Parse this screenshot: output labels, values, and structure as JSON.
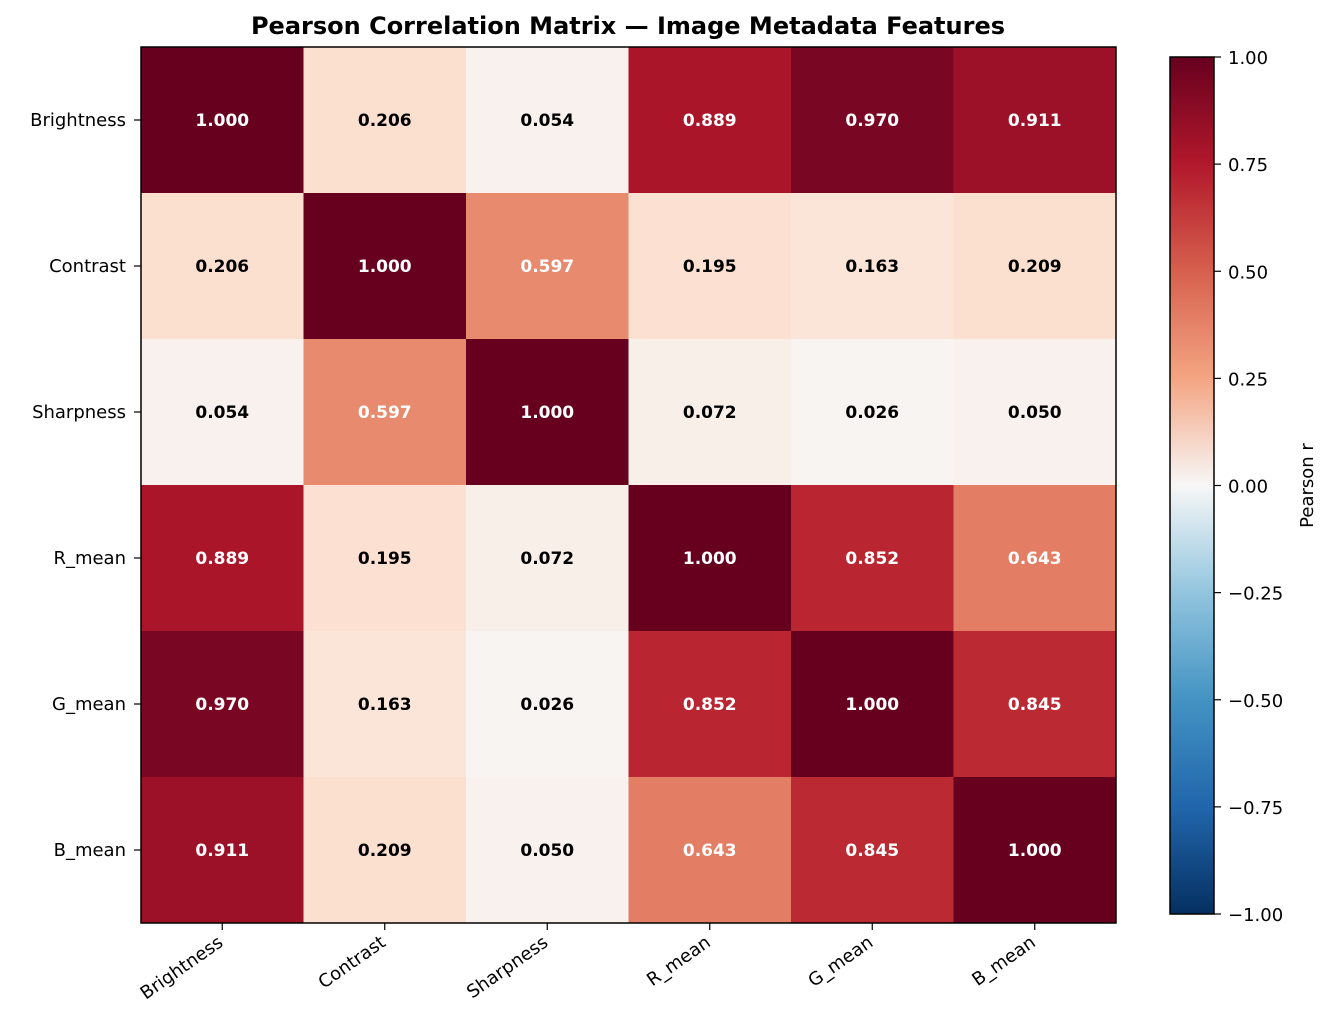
{
  "chart_data": {
    "type": "heatmap",
    "title": "Pearson Correlation Matrix — Image Metadata Features",
    "x_categories": [
      "Brightness",
      "Contrast",
      "Sharpness",
      "R_mean",
      "G_mean",
      "B_mean"
    ],
    "y_categories": [
      "Brightness",
      "Contrast",
      "Sharpness",
      "R_mean",
      "G_mean",
      "B_mean"
    ],
    "values": [
      [
        1.0,
        0.206,
        0.054,
        0.889,
        0.97,
        0.911
      ],
      [
        0.206,
        1.0,
        0.597,
        0.195,
        0.163,
        0.209
      ],
      [
        0.054,
        0.597,
        1.0,
        0.072,
        0.026,
        0.05
      ],
      [
        0.889,
        0.195,
        0.072,
        1.0,
        0.852,
        0.643
      ],
      [
        0.97,
        0.163,
        0.026,
        0.852,
        1.0,
        0.845
      ],
      [
        0.911,
        0.209,
        0.05,
        0.643,
        0.845,
        1.0
      ]
    ],
    "value_labels": [
      [
        "1.000",
        "0.206",
        "0.054",
        "0.889",
        "0.970",
        "0.911"
      ],
      [
        "0.206",
        "1.000",
        "0.597",
        "0.195",
        "0.163",
        "0.209"
      ],
      [
        "0.054",
        "0.597",
        "1.000",
        "0.072",
        "0.026",
        "0.050"
      ],
      [
        "0.889",
        "0.195",
        "0.072",
        "1.000",
        "0.852",
        "0.643"
      ],
      [
        "0.970",
        "0.163",
        "0.026",
        "0.852",
        "1.000",
        "0.845"
      ],
      [
        "0.911",
        "0.209",
        "0.050",
        "0.643",
        "0.845",
        "1.000"
      ]
    ],
    "colormap": "RdBu_r",
    "vmin": -1.0,
    "vmax": 1.0,
    "colorbar": {
      "label": "Pearson r",
      "ticks": [
        1.0,
        0.75,
        0.5,
        0.25,
        0.0,
        -0.25,
        -0.5,
        -0.75,
        -1.0
      ],
      "tick_labels": [
        "1.00",
        "0.75",
        "0.50",
        "0.25",
        "0.00",
        "−0.25",
        "−0.50",
        "−0.75",
        "−1.00"
      ]
    },
    "label_color_rule": "white text when |r| > 0.5, black otherwise",
    "grid": false
  }
}
